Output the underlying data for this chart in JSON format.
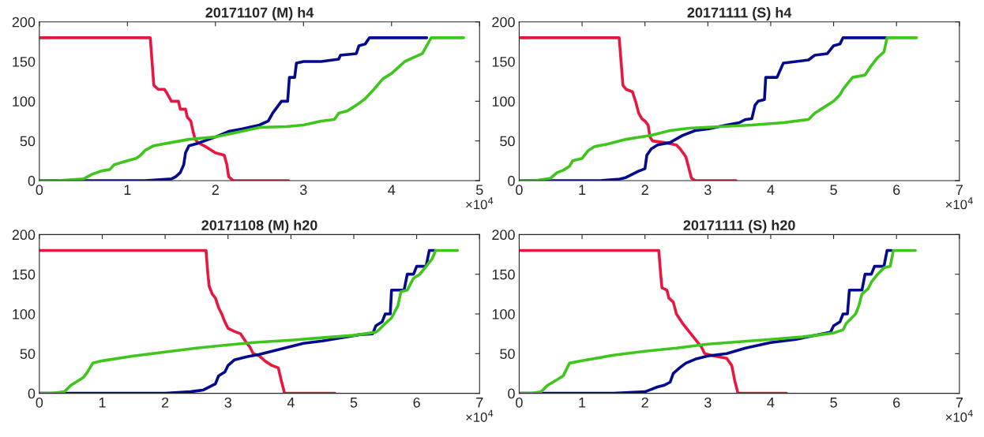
{
  "chart_data": [
    {
      "type": "line",
      "title": "20171107 (M) h4",
      "annotations": [
        "×10$^{4}$"
      ],
      "xlim": [
        0,
        5
      ],
      "ylim": [
        0,
        200
      ],
      "xticks": [
        0,
        1,
        2,
        3,
        4,
        5
      ],
      "yticks": [
        0,
        50,
        100,
        150,
        200
      ],
      "grid": false,
      "legend": false,
      "series": [
        {
          "color": "#e8173f",
          "x": [
            0,
            1.26,
            1.28,
            1.3,
            1.35,
            1.42,
            1.45,
            1.5,
            1.58,
            1.6,
            1.66,
            1.68,
            1.72,
            1.75,
            1.77,
            1.8,
            1.9,
            2.0,
            2.1,
            2.13,
            2.15,
            2.2,
            2.83
          ],
          "values": [
            180,
            180,
            150,
            120,
            115,
            115,
            110,
            100,
            100,
            90,
            90,
            80,
            75,
            60,
            52,
            48,
            42,
            35,
            32,
            20,
            5,
            0,
            0
          ]
        },
        {
          "color": "#050a8c",
          "x": [
            0,
            1.2,
            1.5,
            1.55,
            1.6,
            1.64,
            1.66,
            1.7,
            1.8,
            2.0,
            2.15,
            2.3,
            2.5,
            2.6,
            2.65,
            2.75,
            2.82,
            2.84,
            2.9,
            2.92,
            3.0,
            3.2,
            3.4,
            3.42,
            3.6,
            3.63,
            3.7,
            3.75,
            4.4
          ],
          "values": [
            0,
            0,
            2,
            5,
            10,
            20,
            35,
            44,
            47,
            55,
            62,
            65,
            70,
            75,
            85,
            100,
            100,
            130,
            130,
            148,
            150,
            150,
            153,
            158,
            160,
            170,
            172,
            180,
            180
          ]
        },
        {
          "color": "#3ec61c",
          "x": [
            0,
            0.2,
            0.5,
            0.6,
            0.7,
            0.8,
            0.85,
            1.0,
            1.1,
            1.15,
            1.2,
            1.3,
            1.5,
            1.7,
            2.0,
            2.3,
            2.5,
            2.8,
            3.0,
            3.2,
            3.35,
            3.4,
            3.5,
            3.6,
            3.7,
            3.8,
            3.9,
            4.0,
            4.05,
            4.15,
            4.25,
            4.35,
            4.4,
            4.45,
            4.82
          ],
          "values": [
            0,
            0,
            2,
            8,
            12,
            14,
            20,
            25,
            28,
            32,
            38,
            44,
            48,
            52,
            55,
            62,
            67,
            68,
            70,
            75,
            77,
            85,
            88,
            95,
            103,
            115,
            128,
            135,
            140,
            150,
            155,
            160,
            170,
            180,
            180
          ]
        }
      ]
    },
    {
      "type": "line",
      "title": "20171111 (S) h4",
      "annotations": [
        "×10$^{4}$"
      ],
      "xlim": [
        0,
        7
      ],
      "ylim": [
        0,
        200
      ],
      "xticks": [
        0,
        1,
        2,
        3,
        4,
        5,
        6,
        7
      ],
      "yticks": [
        0,
        50,
        100,
        150,
        200
      ],
      "grid": false,
      "legend": false,
      "series": [
        {
          "color": "#e8173f",
          "x": [
            0,
            1.59,
            1.62,
            1.65,
            1.7,
            1.8,
            1.85,
            1.9,
            1.95,
            2.0,
            2.05,
            2.08,
            2.12,
            2.3,
            2.5,
            2.56,
            2.65,
            2.7,
            2.74,
            2.8,
            3.45
          ],
          "values": [
            180,
            180,
            150,
            120,
            115,
            112,
            100,
            85,
            78,
            75,
            70,
            55,
            50,
            48,
            45,
            40,
            30,
            15,
            3,
            0,
            0
          ]
        },
        {
          "color": "#050a8c",
          "x": [
            0,
            1.3,
            1.6,
            1.7,
            1.8,
            1.9,
            2.0,
            2.03,
            2.1,
            2.2,
            2.4,
            2.6,
            2.8,
            3.0,
            3.3,
            3.5,
            3.6,
            3.7,
            3.75,
            3.8,
            3.9,
            3.92,
            4.1,
            4.2,
            4.4,
            4.6,
            4.7,
            4.9,
            5.0,
            5.1,
            5.15,
            5.85
          ],
          "values": [
            0,
            0,
            2,
            4,
            8,
            12,
            15,
            32,
            40,
            45,
            48,
            57,
            63,
            65,
            70,
            73,
            77,
            78,
            95,
            100,
            102,
            130,
            130,
            148,
            150,
            152,
            158,
            160,
            170,
            172,
            180,
            180
          ]
        },
        {
          "color": "#3ec61c",
          "x": [
            0,
            0.25,
            0.5,
            0.6,
            0.7,
            0.8,
            0.85,
            1.0,
            1.1,
            1.2,
            1.4,
            1.7,
            2.1,
            2.4,
            2.7,
            3.2,
            3.7,
            4.2,
            4.6,
            4.7,
            4.8,
            4.9,
            5.0,
            5.1,
            5.15,
            5.2,
            5.3,
            5.5,
            5.6,
            5.7,
            5.8,
            5.85,
            6.32
          ],
          "values": [
            0,
            0,
            3,
            10,
            13,
            18,
            25,
            28,
            38,
            43,
            46,
            52,
            57,
            63,
            66,
            68,
            70,
            73,
            77,
            85,
            90,
            95,
            100,
            108,
            115,
            120,
            130,
            133,
            145,
            155,
            162,
            180,
            180
          ]
        }
      ]
    },
    {
      "type": "line",
      "title": "20171108 (M) h20",
      "annotations": [
        "×10$^{4}$"
      ],
      "xlim": [
        0,
        7
      ],
      "ylim": [
        0,
        200
      ],
      "xticks": [
        0,
        1,
        2,
        3,
        4,
        5,
        6,
        7
      ],
      "yticks": [
        0,
        50,
        100,
        150,
        200
      ],
      "grid": false,
      "legend": false,
      "series": [
        {
          "color": "#e8173f",
          "x": [
            0,
            2.65,
            2.68,
            2.7,
            2.75,
            2.8,
            2.85,
            2.9,
            2.95,
            3.0,
            3.1,
            3.2,
            3.3,
            3.35,
            3.4,
            3.5,
            3.6,
            3.7,
            3.8,
            3.85,
            3.9,
            4.7
          ],
          "values": [
            180,
            180,
            150,
            135,
            125,
            120,
            108,
            100,
            90,
            82,
            78,
            75,
            63,
            58,
            50,
            47,
            40,
            35,
            32,
            15,
            0,
            0
          ]
        },
        {
          "color": "#050a8c",
          "x": [
            0,
            2.0,
            2.4,
            2.6,
            2.7,
            2.8,
            2.85,
            2.95,
            3.0,
            3.1,
            3.3,
            3.5,
            3.8,
            4.2,
            4.5,
            4.8,
            5.1,
            5.3,
            5.35,
            5.45,
            5.5,
            5.58,
            5.6,
            5.8,
            5.85,
            5.95,
            6.0,
            6.15,
            6.2,
            6.3
          ],
          "values": [
            0,
            0,
            2,
            4,
            8,
            12,
            22,
            27,
            35,
            42,
            46,
            49,
            55,
            63,
            66,
            70,
            74,
            75,
            85,
            90,
            100,
            100,
            130,
            130,
            150,
            150,
            160,
            160,
            180,
            180
          ]
        },
        {
          "color": "#3ec61c",
          "x": [
            0,
            0.2,
            0.4,
            0.5,
            0.6,
            0.7,
            0.75,
            0.85,
            1.0,
            1.5,
            2.0,
            2.5,
            3.0,
            3.4,
            4.0,
            4.5,
            5.0,
            5.35,
            5.4,
            5.5,
            5.6,
            5.7,
            5.75,
            5.85,
            5.95,
            6.05,
            6.15,
            6.25,
            6.3,
            6.65
          ],
          "values": [
            0,
            0,
            2,
            10,
            15,
            20,
            25,
            38,
            41,
            47,
            52,
            57,
            61,
            64,
            67,
            70,
            73,
            77,
            80,
            88,
            95,
            110,
            128,
            130,
            145,
            150,
            160,
            170,
            180,
            180
          ]
        }
      ]
    },
    {
      "type": "line",
      "title": "20171111 (S) h20",
      "annotations": [
        "×10$^{4}$"
      ],
      "xlim": [
        0,
        7
      ],
      "ylim": [
        0,
        200
      ],
      "xticks": [
        0,
        1,
        2,
        3,
        4,
        5,
        6,
        7
      ],
      "yticks": [
        0,
        50,
        100,
        150,
        200
      ],
      "grid": false,
      "legend": false,
      "series": [
        {
          "color": "#e8173f",
          "x": [
            0,
            2.22,
            2.25,
            2.27,
            2.35,
            2.38,
            2.45,
            2.5,
            2.6,
            2.7,
            2.8,
            2.9,
            2.95,
            3.1,
            3.3,
            3.38,
            3.43,
            3.48,
            4.25
          ],
          "values": [
            180,
            180,
            150,
            133,
            130,
            120,
            115,
            100,
            88,
            78,
            68,
            58,
            50,
            47,
            44,
            35,
            15,
            0,
            0
          ]
        },
        {
          "color": "#050a8c",
          "x": [
            0,
            1.5,
            2.0,
            2.1,
            2.2,
            2.3,
            2.4,
            2.45,
            2.55,
            2.65,
            2.8,
            3.0,
            3.3,
            3.6,
            4.0,
            4.4,
            4.7,
            4.95,
            5.0,
            5.1,
            5.15,
            5.22,
            5.25,
            5.45,
            5.5,
            5.6,
            5.65,
            5.8,
            5.85,
            5.92
          ],
          "values": [
            0,
            0,
            2,
            5,
            8,
            10,
            14,
            25,
            32,
            38,
            43,
            47,
            50,
            57,
            64,
            68,
            73,
            77,
            85,
            90,
            100,
            100,
            130,
            130,
            150,
            150,
            160,
            160,
            180,
            180
          ]
        },
        {
          "color": "#3ec61c",
          "x": [
            0,
            0.2,
            0.35,
            0.45,
            0.6,
            0.7,
            0.8,
            1.0,
            1.5,
            2.0,
            2.5,
            3.0,
            3.5,
            4.0,
            4.5,
            5.0,
            5.15,
            5.2,
            5.35,
            5.4,
            5.45,
            5.55,
            5.6,
            5.7,
            5.8,
            5.9,
            5.95,
            6.3
          ],
          "values": [
            0,
            0,
            2,
            10,
            17,
            22,
            38,
            41,
            48,
            53,
            57,
            62,
            65,
            68,
            71,
            76,
            80,
            88,
            100,
            110,
            125,
            132,
            140,
            150,
            158,
            160,
            180,
            180
          ]
        }
      ]
    }
  ]
}
